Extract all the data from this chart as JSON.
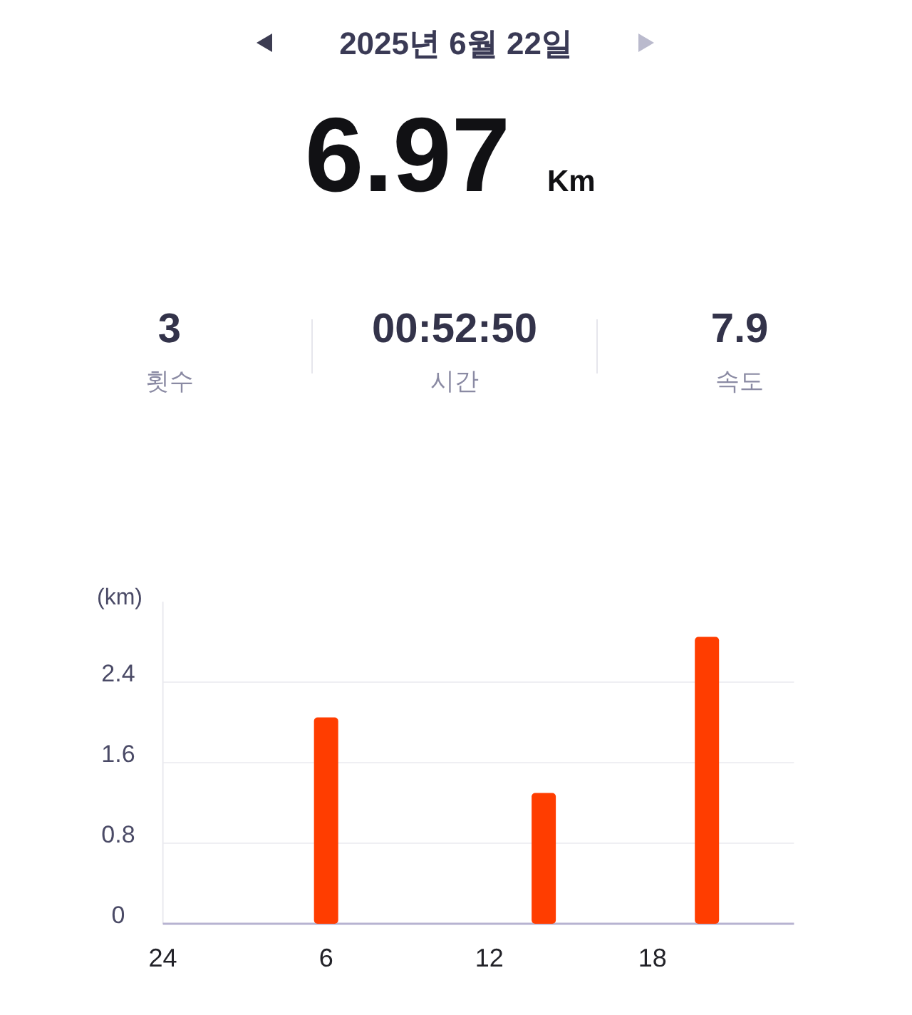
{
  "chart_data": [
    {
      "type": "other",
      "title": "2025년 6월 22일",
      "subtitle": "6.97 Km",
      "categories": [
        "횟수",
        "시간",
        "속도"
      ],
      "value_labels": [
        "3",
        "00:52:50",
        "7.9"
      ]
    },
    {
      "type": "bar",
      "ylabel": "(km)",
      "categories": [
        "24",
        null,
        null,
        null,
        null,
        null,
        "6",
        null,
        null,
        null,
        null,
        null,
        "12",
        null,
        null,
        null,
        null,
        null,
        "18",
        null,
        null,
        null,
        null,
        null
      ],
      "values": [
        null,
        null,
        null,
        null,
        null,
        null,
        2.05,
        null,
        null,
        null,
        null,
        null,
        null,
        null,
        1.3,
        null,
        null,
        null,
        null,
        null,
        2.85,
        null,
        null,
        null
      ],
      "color": "#ff3d00",
      "ylim": [
        0,
        3.2
      ],
      "yticks": [
        0,
        0.8,
        1.6,
        2.4
      ],
      "grid": "y"
    }
  ]
}
